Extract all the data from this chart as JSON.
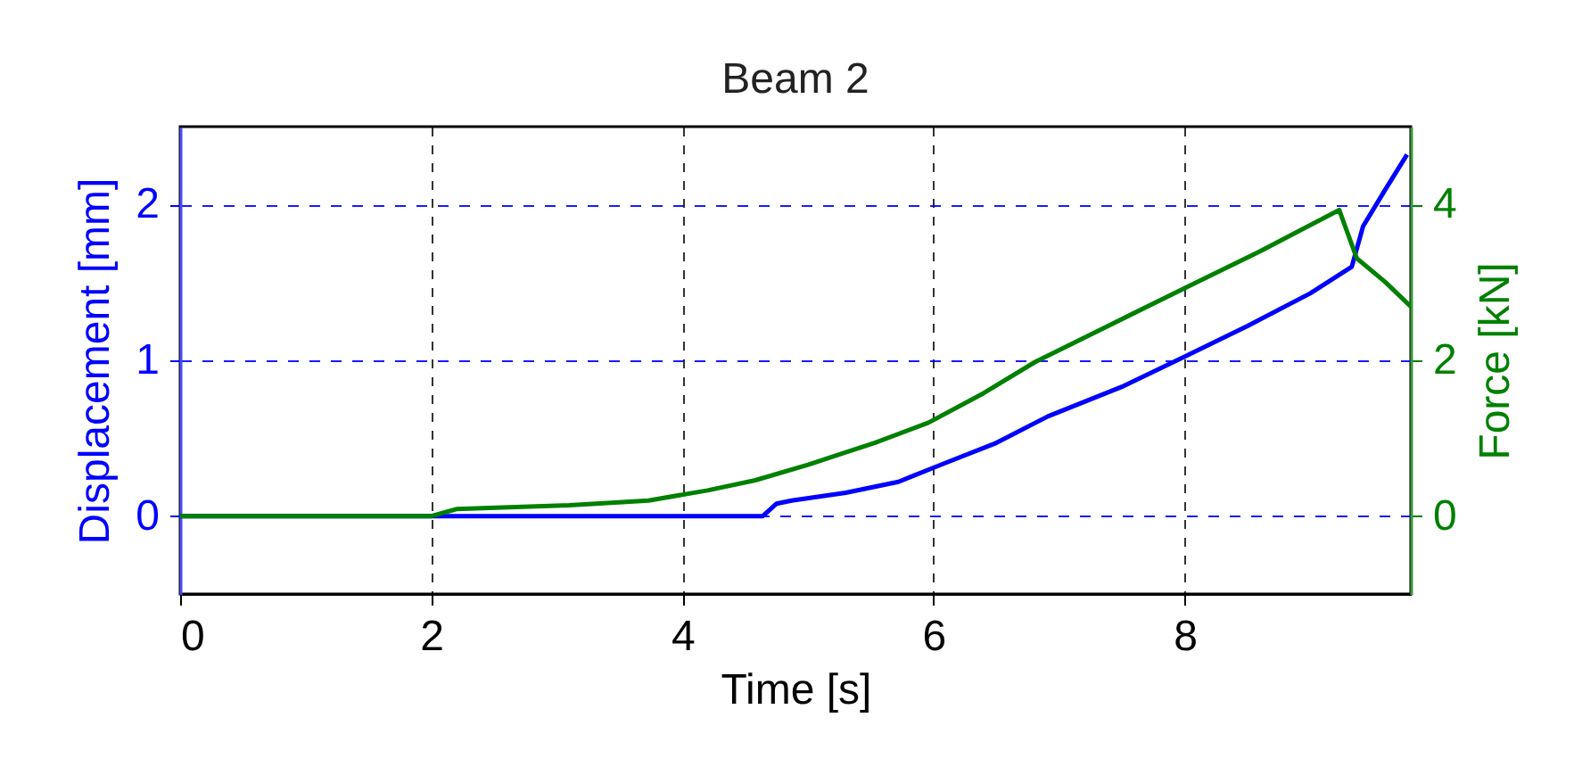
{
  "chart_data": {
    "type": "line",
    "title": "Beam 2",
    "xlabel": "Time [s]",
    "ylabel": "Displacement [mm]",
    "y2label": "Force [kN]",
    "xlim": [
      0,
      9.8
    ],
    "xticks": [
      0,
      2,
      4,
      6,
      8
    ],
    "ylim": [
      -0.5,
      2.5
    ],
    "yticks": [
      0,
      1,
      2
    ],
    "y2lim": [
      -1,
      5
    ],
    "y2ticks": [
      0,
      2,
      4
    ],
    "grid": true,
    "series": [
      {
        "color": "#0000ff",
        "axis": "y",
        "x": [
          0,
          2,
          4,
          4.64,
          4.75,
          4.87,
          5.3,
          5.72,
          6.06,
          6.5,
          6.91,
          7.5,
          7.99,
          8.5,
          9.0,
          9.33,
          9.42,
          9.6,
          9.77
        ],
        "values": [
          0,
          0,
          0,
          0,
          0.08,
          0.1,
          0.15,
          0.22,
          0.33,
          0.47,
          0.64,
          0.83,
          1.02,
          1.22,
          1.43,
          1.6,
          1.86,
          2.1,
          2.32
        ]
      },
      {
        "color": "#008000",
        "axis": "y2",
        "x": [
          0,
          2,
          2.2,
          3.1,
          3.73,
          4.2,
          4.58,
          5.0,
          5.53,
          5.96,
          6.4,
          6.81,
          7.4,
          7.99,
          8.6,
          9.23,
          9.37,
          9.6,
          9.8
        ],
        "values": [
          0,
          0,
          0.09,
          0.14,
          0.2,
          0.33,
          0.46,
          0.66,
          0.94,
          1.2,
          1.58,
          1.98,
          2.45,
          2.92,
          3.4,
          3.93,
          3.31,
          3.0,
          2.69
        ]
      }
    ]
  }
}
